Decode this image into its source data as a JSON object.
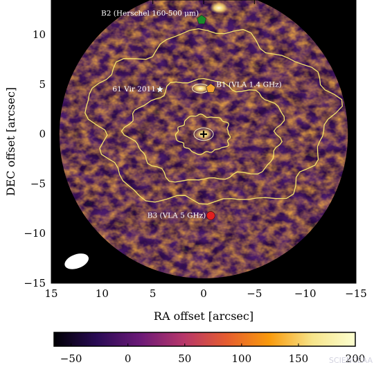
{
  "chart_data": {
    "type": "heatmap",
    "title": "",
    "xlabel": "RA offset [arcsec]",
    "ylabel": "DEC offset [arcsec]",
    "xlim": [
      15,
      -15
    ],
    "ylim": [
      -15,
      13.5
    ],
    "x_ticks": [
      15,
      10,
      5,
      0,
      -5,
      -10,
      -15
    ],
    "y_ticks": [
      -15,
      -10,
      -5,
      0,
      5,
      10
    ],
    "x_tick_labels": [
      "15",
      "10",
      "5",
      "0",
      "−5",
      "−10",
      "−15"
    ],
    "y_tick_labels": [
      "−15",
      "−10",
      "−5",
      "0",
      "5",
      "10"
    ],
    "colorbar": {
      "range": [
        -65,
        200
      ],
      "ticks": [
        -50,
        0,
        50,
        100,
        150,
        200
      ],
      "tick_labels": [
        "−50",
        "0",
        "50",
        "100",
        "150",
        "200"
      ],
      "colormap": "inferno-like",
      "colors": [
        "#000004",
        "#2a0b55",
        "#6b1a77",
        "#b6366a",
        "#e55c30",
        "#f99a0c",
        "#f6e48a",
        "#fcffd0"
      ]
    },
    "contours": {
      "color": "#f5e56b",
      "levels": [
        {
          "rx": 11.8,
          "ry": 8.6,
          "cx": -0.8,
          "cy": 1.5
        },
        {
          "rx": 7.5,
          "ry": 5.0,
          "cx": -0.3,
          "cy": 0.3
        },
        {
          "rx": 2.6,
          "ry": 1.9,
          "cx": 0,
          "cy": 0
        }
      ]
    },
    "markers": [
      {
        "name": "center-cross",
        "x": 0,
        "y": 0,
        "symbol": "+",
        "color": "#000000"
      },
      {
        "name": "61-vir-star",
        "x": 4.3,
        "y": 4.5,
        "symbol": "star",
        "color": "#ffffff",
        "label": "61 Vir 2011"
      },
      {
        "name": "b1-pentagon",
        "x": -0.7,
        "y": 4.6,
        "symbol": "pentagon",
        "color": "#f0a030",
        "label": "B1 (VLA 1.4 GHz)"
      },
      {
        "name": "b2-pentagon",
        "x": 0.2,
        "y": 11.5,
        "symbol": "pentagon",
        "color": "#1a8a2a",
        "label": "B2 (Herschel 160-500 μm)"
      },
      {
        "name": "b3-circle",
        "x": -0.7,
        "y": -8.2,
        "symbol": "circle",
        "color": "#e02020",
        "label": "B3 (VLA 5 GHz)"
      }
    ],
    "beam": {
      "x": 12.5,
      "y": -12.8,
      "major": 1.6,
      "minor": 1.1,
      "color": "#ffffff"
    },
    "field_radius": 14.2,
    "grid": false
  },
  "watermark": "SCIENCEAA"
}
